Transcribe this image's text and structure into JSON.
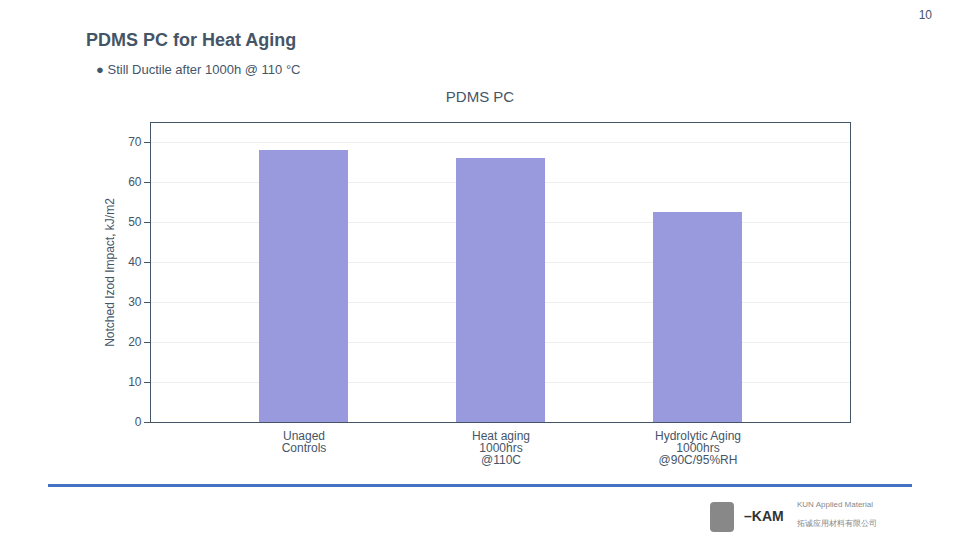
{
  "chart_data": {
    "type": "bar",
    "title": "PDMS PC",
    "annotations": [
      "10",
      "PDMS PC for Heat Aging",
      "● Still Ductile after 1000h @ 110 °C",
      "–KAM",
      "KUN Applied Material",
      "拓诚应用材料有限公司"
    ],
    "ylabel": "Notched Izod Impact, kJ/m2",
    "categories": [
      "Unaged\nControls",
      "Heat aging\n1000hrs\n@110C",
      "Hydrolytic Aging\n1000hrs\n@90C/95%RH"
    ],
    "values": [
      68,
      66,
      52.5
    ],
    "color": "#9999dd",
    "ylim": [
      0,
      75
    ],
    "yticks": [
      0,
      10,
      20,
      30,
      40,
      50,
      60,
      70
    ],
    "grid": true
  }
}
